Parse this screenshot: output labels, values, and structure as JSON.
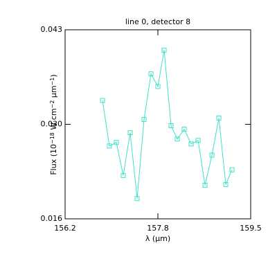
{
  "chart_data": {
    "type": "line",
    "title": "line 0, detector 8",
    "xlabel": "λ (μm)",
    "ylabel": [
      "Flux (10",
      "−18",
      " W cm",
      "−2",
      " μm",
      "−1",
      ")"
    ],
    "xlim": [
      156.2,
      159.5
    ],
    "xticks": [
      156.2,
      {
        "value": 157.85,
        "label": "157.8"
      },
      159.5
    ],
    "ylim": [
      0.016,
      0.043
    ],
    "yticks": [
      0.016,
      {
        "value": 0.0295,
        "label": "0.030"
      },
      0.043
    ],
    "series": [
      {
        "color": "#40e0c8",
        "x": [
          156.865,
          156.988,
          157.111,
          157.234,
          157.357,
          157.481,
          157.604,
          157.727,
          157.85,
          157.961,
          158.084,
          158.195,
          158.318,
          158.441,
          158.565,
          158.688,
          158.811,
          158.934,
          159.057,
          159.168
        ],
        "values": [
          0.0329,
          0.0264,
          0.0269,
          0.0222,
          0.0283,
          0.0189,
          0.0302,
          0.0367,
          0.0349,
          0.0401,
          0.0293,
          0.0274,
          0.0288,
          0.0267,
          0.0272,
          0.0208,
          0.0251,
          0.0304,
          0.0209,
          0.023
        ]
      }
    ]
  }
}
